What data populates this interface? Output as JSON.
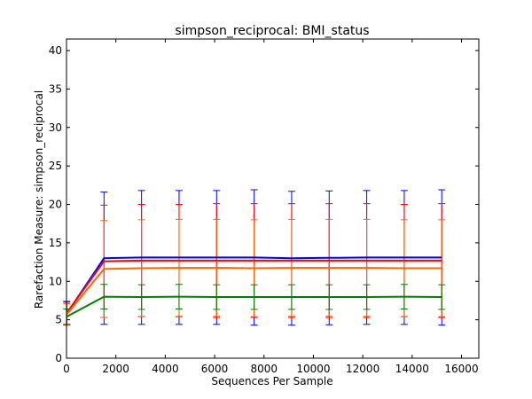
{
  "chart_data": {
    "type": "line",
    "title": "simpson_reciprocal: BMI_status",
    "xlabel": "Sequences Per Sample",
    "ylabel": "Rarefaction Measure: simpson_reciprocal",
    "xlim": [
      0,
      16700
    ],
    "ylim": [
      0,
      41.5
    ],
    "xticks": [
      0,
      2000,
      4000,
      6000,
      8000,
      10000,
      12000,
      14000,
      16000
    ],
    "yticks": [
      0,
      5,
      10,
      15,
      20,
      25,
      30,
      35,
      40
    ],
    "grid": false,
    "x": [
      10,
      1520,
      3040,
      4560,
      6080,
      7600,
      9120,
      10640,
      12160,
      13680,
      15200
    ],
    "series": [
      {
        "color": "#0000ff",
        "values": [
          5.8,
          13.0,
          13.1,
          13.1,
          13.1,
          13.1,
          13.0,
          13.05,
          13.1,
          13.1,
          13.1
        ],
        "errors": [
          1.5,
          8.6,
          8.7,
          8.7,
          8.7,
          8.8,
          8.7,
          8.7,
          8.7,
          8.7,
          8.8
        ]
      },
      {
        "color": "#ff0000",
        "values": [
          5.9,
          12.6,
          12.7,
          12.7,
          12.7,
          12.7,
          12.7,
          12.7,
          12.7,
          12.7,
          12.7
        ],
        "errors": [
          1.5,
          7.3,
          7.3,
          7.3,
          7.4,
          7.4,
          7.4,
          7.4,
          7.4,
          7.3,
          7.4
        ]
      },
      {
        "color": "#ff6600",
        "values": [
          5.7,
          11.6,
          11.7,
          11.75,
          11.75,
          11.7,
          11.75,
          11.75,
          11.75,
          11.7,
          11.7
        ],
        "errors": [
          1.4,
          6.3,
          6.3,
          6.3,
          6.3,
          6.3,
          6.3,
          6.3,
          6.3,
          6.3,
          6.3
        ]
      },
      {
        "color": "#008000",
        "values": [
          5.4,
          8.0,
          7.95,
          8.0,
          7.95,
          7.95,
          7.95,
          7.95,
          7.95,
          8.0,
          7.95
        ],
        "errors": [
          1.0,
          1.6,
          1.6,
          1.6,
          1.6,
          1.6,
          1.6,
          1.6,
          1.6,
          1.6,
          1.6
        ]
      }
    ]
  }
}
